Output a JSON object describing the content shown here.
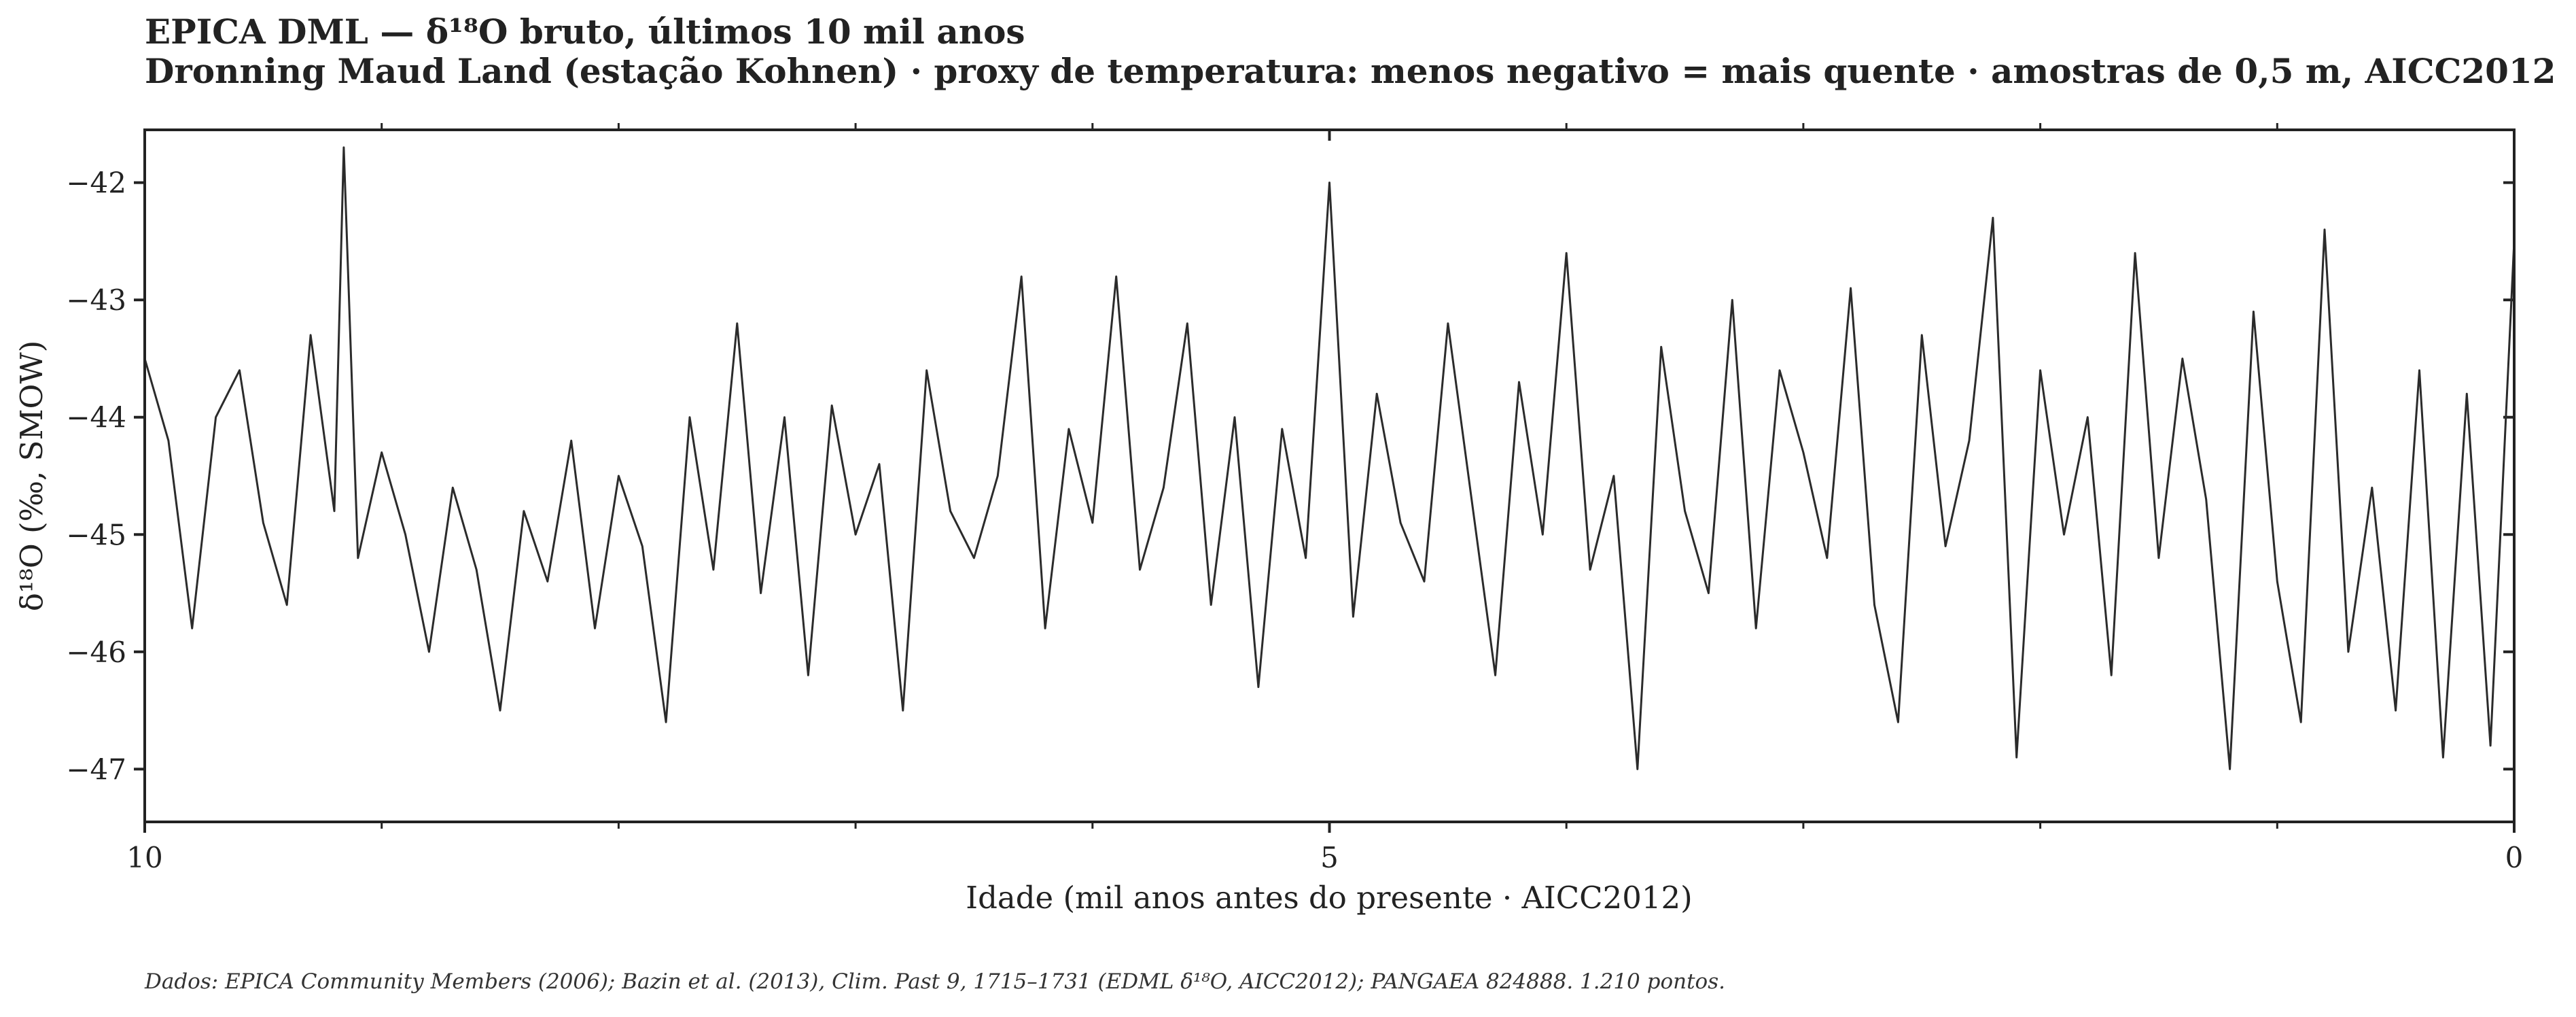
{
  "chart_data": {
    "type": "line",
    "title": "EPICA DML — δ¹⁸O bruto, últimos 10 mil anos",
    "subtitle": "Dronning Maud Land (estação Kohnen) · proxy de temperatura: menos negativo = mais quente · amostras de 0,5 m, AICC2012",
    "xlabel": "Idade (mil anos antes do presente · AICC2012)",
    "ylabel": "δ¹⁸O (‰, SMOW)",
    "xlim": [
      10,
      0
    ],
    "ylim": [
      -47.45,
      -41.55
    ],
    "x_ticks": [
      10,
      5,
      0
    ],
    "x_minor_ticks": [
      9,
      8,
      7,
      6,
      4,
      3,
      2,
      1
    ],
    "y_ticks": [
      -42,
      -43,
      -44,
      -45,
      -46,
      -47
    ],
    "x_tick_labels": [
      "10",
      "5",
      "0"
    ],
    "y_tick_labels": [
      "−42",
      "−43",
      "−44",
      "−45",
      "−46",
      "−47"
    ],
    "grid": false,
    "line_color": "#2b2b2b",
    "series": [
      {
        "x": [
          10.0,
          9.9,
          9.8,
          9.7,
          9.6,
          9.5,
          9.4,
          9.3,
          9.2,
          9.16,
          9.1,
          9.0,
          8.9,
          8.8,
          8.7,
          8.6,
          8.5,
          8.4,
          8.3,
          8.2,
          8.1,
          8.0,
          7.9,
          7.8,
          7.7,
          7.6,
          7.5,
          7.4,
          7.3,
          7.2,
          7.1,
          7.0,
          6.9,
          6.8,
          6.7,
          6.6,
          6.5,
          6.4,
          6.3,
          6.2,
          6.1,
          6.0,
          5.9,
          5.8,
          5.7,
          5.6,
          5.5,
          5.4,
          5.3,
          5.2,
          5.1,
          5.0,
          4.9,
          4.8,
          4.7,
          4.6,
          4.5,
          4.4,
          4.3,
          4.2,
          4.1,
          4.0,
          3.9,
          3.8,
          3.7,
          3.6,
          3.5,
          3.4,
          3.3,
          3.2,
          3.1,
          3.0,
          2.9,
          2.8,
          2.7,
          2.6,
          2.5,
          2.4,
          2.3,
          2.2,
          2.1,
          2.0,
          1.9,
          1.8,
          1.7,
          1.6,
          1.5,
          1.4,
          1.3,
          1.2,
          1.1,
          1.0,
          0.9,
          0.8,
          0.7,
          0.6,
          0.5,
          0.4,
          0.3,
          0.2,
          0.1,
          0.0
        ],
        "y": [
          -43.5,
          -44.2,
          -45.8,
          -44.0,
          -43.6,
          -44.9,
          -45.6,
          -43.3,
          -44.8,
          -41.7,
          -45.2,
          -44.3,
          -45.0,
          -46.0,
          -44.6,
          -45.3,
          -46.5,
          -44.8,
          -45.4,
          -44.2,
          -45.8,
          -44.5,
          -45.1,
          -46.6,
          -44.0,
          -45.3,
          -43.2,
          -45.5,
          -44.0,
          -46.2,
          -43.9,
          -45.0,
          -44.4,
          -46.5,
          -43.6,
          -44.8,
          -45.2,
          -44.5,
          -42.8,
          -45.8,
          -44.1,
          -44.9,
          -42.8,
          -45.3,
          -44.6,
          -43.2,
          -45.6,
          -44.0,
          -46.3,
          -44.1,
          -45.2,
          -42.0,
          -45.7,
          -43.8,
          -44.9,
          -45.4,
          -43.2,
          -44.7,
          -46.2,
          -43.7,
          -45.0,
          -42.6,
          -45.3,
          -44.5,
          -47.0,
          -43.4,
          -44.8,
          -45.5,
          -43.0,
          -45.8,
          -43.6,
          -44.3,
          -45.2,
          -42.9,
          -45.6,
          -46.6,
          -43.3,
          -45.1,
          -44.2,
          -42.3,
          -46.9,
          -43.6,
          -45.0,
          -44.0,
          -46.2,
          -42.6,
          -45.2,
          -43.5,
          -44.7,
          -47.0,
          -43.1,
          -45.4,
          -46.6,
          -42.4,
          -46.0,
          -44.6,
          -46.5,
          -43.6,
          -46.9,
          -43.8,
          -46.8,
          -42.5
        ]
      }
    ]
  },
  "footer": {
    "source": "Dados: EPICA Community Members (2006); Bazin et al. (2013), Clim. Past 9, 1715–1731 (EDML δ¹⁸O, AICC2012); PANGAEA 824888. 1.210 pontos."
  }
}
